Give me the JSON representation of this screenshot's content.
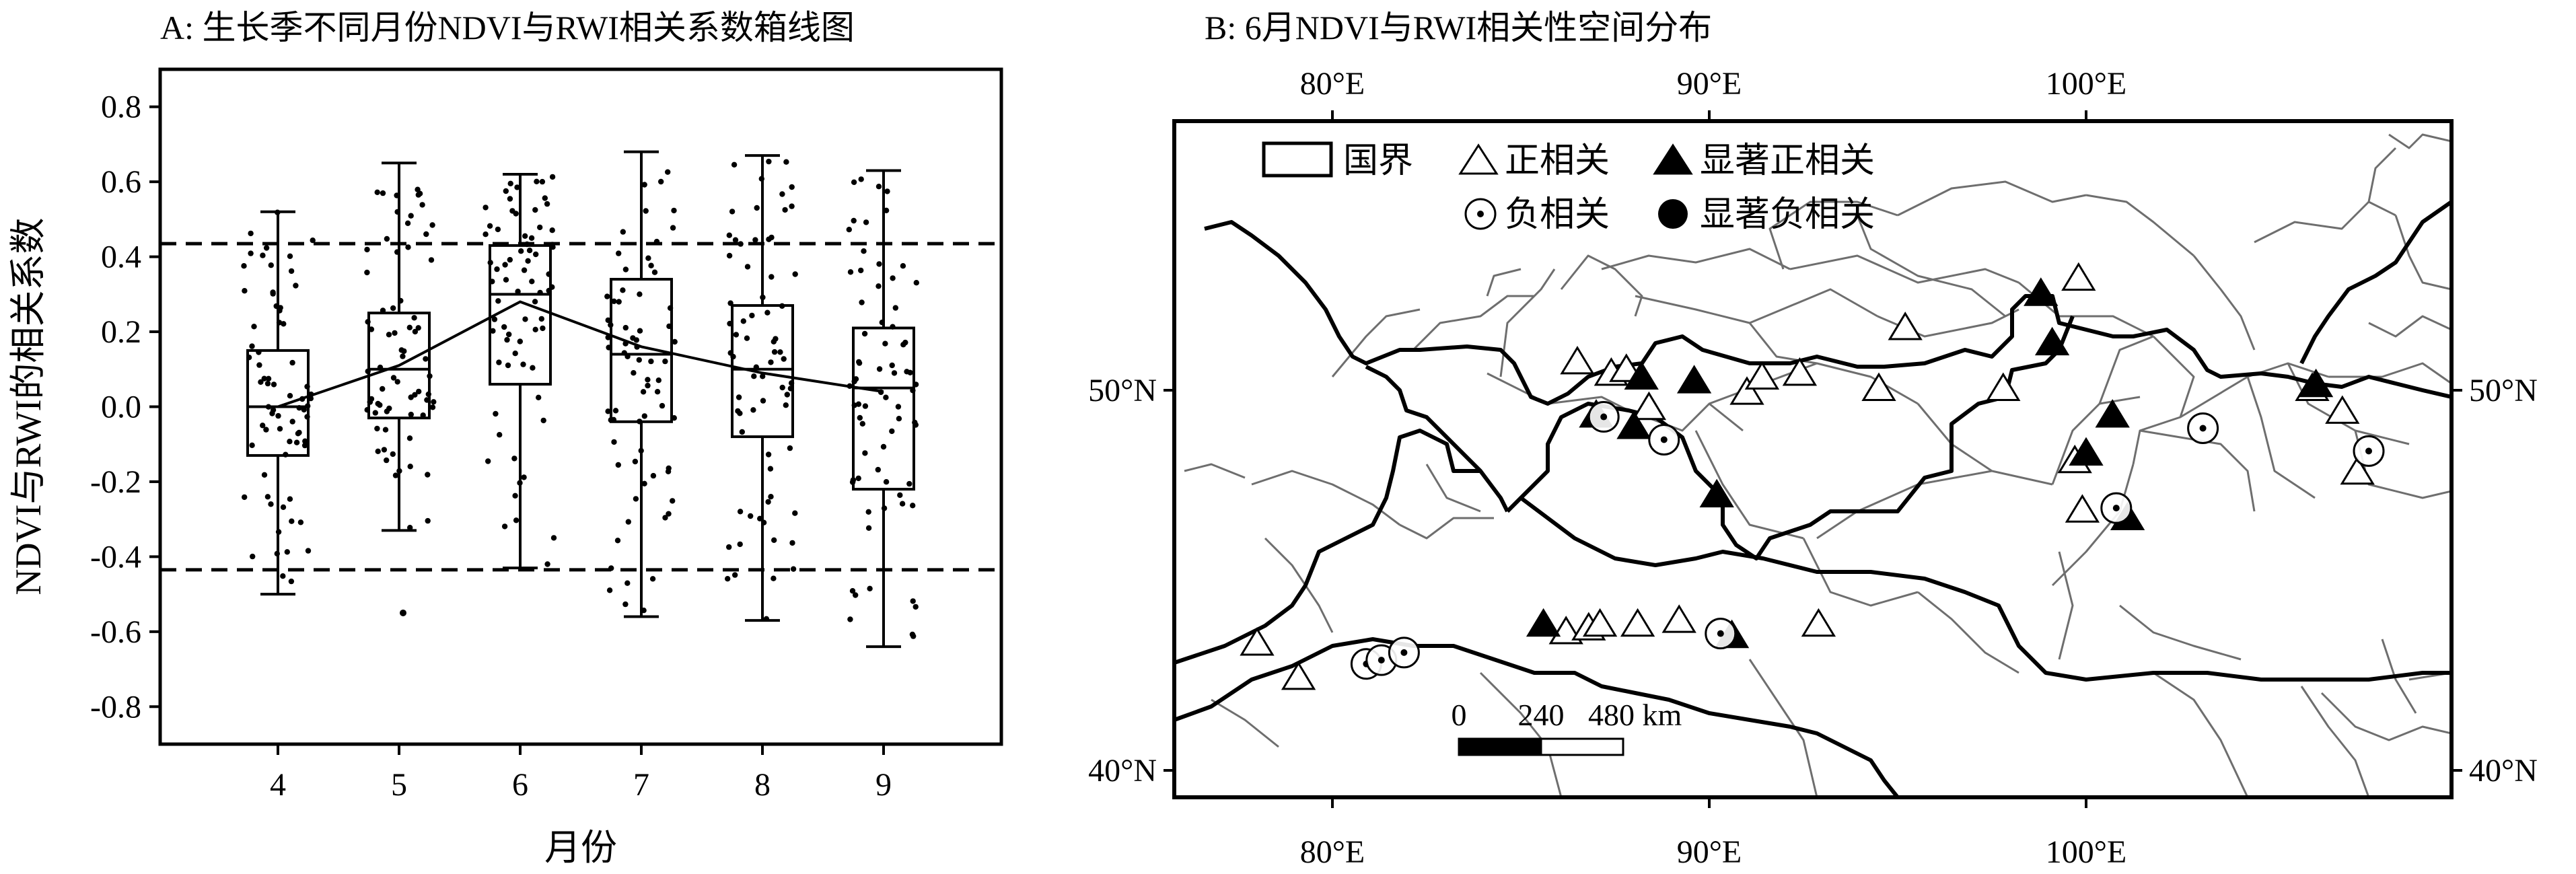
{
  "panel_a": {
    "title": "A: 生长季不同月份NDVI与RWI相关系数箱线图",
    "xlabel": "月份",
    "ylabel": "NDVI与RWI的相关系数"
  },
  "panel_b": {
    "title": "B: 6月NDVI与RWI相关性空间分布",
    "legend": {
      "border": "国界",
      "positive": "正相关",
      "sig_positive": "显著正相关",
      "negative": "负相关",
      "sig_negative": "显著负相关"
    },
    "scalebar": {
      "labels": [
        "0",
        "240",
        "480 km"
      ]
    },
    "lon_ticks": [
      "80°E",
      "90°E",
      "100°E"
    ],
    "lat_ticks": [
      "50°N",
      "40°N"
    ],
    "map_extent": {
      "lon": [
        76,
        110
      ],
      "lat": [
        39,
        57
      ]
    },
    "lon_tick_values": [
      80,
      90,
      100
    ],
    "lat_tick_values": [
      50,
      40
    ]
  },
  "chart_data": [
    {
      "type": "box",
      "title": "A: 生长季不同月份NDVI与RWI相关系数箱线图",
      "xlabel": "月份",
      "ylabel": "NDVI与RWI的相关系数",
      "categories": [
        "4",
        "5",
        "6",
        "7",
        "8",
        "9"
      ],
      "ylim": [
        -0.9,
        0.9
      ],
      "yticks": [
        -0.8,
        -0.6,
        -0.4,
        -0.2,
        0.0,
        0.2,
        0.4,
        0.6,
        0.8
      ],
      "ytick_labels": [
        "-0.8",
        "-0.6",
        "-0.4",
        "-0.2",
        "0.0",
        "0.2",
        "0.4",
        "0.6",
        "0.8"
      ],
      "significance_lines": [
        0.435,
        -0.435
      ],
      "boxes": [
        {
          "month": "4",
          "min": -0.5,
          "q1": -0.13,
          "median": 0.0,
          "q3": 0.15,
          "max": 0.52,
          "mean": 0.0
        },
        {
          "month": "5",
          "min": -0.33,
          "q1": -0.03,
          "median": 0.1,
          "q3": 0.25,
          "max": 0.65,
          "mean": 0.11
        },
        {
          "month": "6",
          "min": -0.43,
          "q1": 0.06,
          "median": 0.3,
          "q3": 0.43,
          "max": 0.62,
          "mean": 0.28
        },
        {
          "month": "7",
          "min": -0.56,
          "q1": -0.04,
          "median": 0.14,
          "q3": 0.34,
          "max": 0.68,
          "mean": 0.16
        },
        {
          "month": "8",
          "min": -0.57,
          "q1": -0.08,
          "median": 0.1,
          "q3": 0.27,
          "max": 0.67,
          "mean": 0.09
        },
        {
          "month": "9",
          "min": -0.64,
          "q1": -0.22,
          "median": 0.05,
          "q3": 0.21,
          "max": 0.63,
          "mean": 0.04
        }
      ],
      "outliers": [
        {
          "month": "5",
          "value": -0.55
        }
      ]
    },
    {
      "type": "map",
      "title": "B: 6月NDVI与RWI相关性空间分布",
      "points": [
        {
          "lon": 98.8,
          "lat": 52.5,
          "class": "sig_positive"
        },
        {
          "lon": 99.1,
          "lat": 51.2,
          "class": "sig_positive"
        },
        {
          "lon": 99.8,
          "lat": 52.9,
          "class": "positive"
        },
        {
          "lon": 95.2,
          "lat": 51.6,
          "class": "positive"
        },
        {
          "lon": 78.0,
          "lat": 43.3,
          "class": "positive"
        },
        {
          "lon": 86.5,
          "lat": 50.7,
          "class": "positive"
        },
        {
          "lon": 87.4,
          "lat": 50.4,
          "class": "positive"
        },
        {
          "lon": 87.8,
          "lat": 50.5,
          "class": "positive"
        },
        {
          "lon": 88.4,
          "lat": 49.5,
          "class": "positive"
        },
        {
          "lon": 91.0,
          "lat": 49.9,
          "class": "positive"
        },
        {
          "lon": 91.4,
          "lat": 50.3,
          "class": "positive"
        },
        {
          "lon": 92.4,
          "lat": 50.4,
          "class": "positive"
        },
        {
          "lon": 94.5,
          "lat": 50.0,
          "class": "positive"
        },
        {
          "lon": 97.8,
          "lat": 50.0,
          "class": "positive"
        },
        {
          "lon": 99.7,
          "lat": 48.1,
          "class": "positive"
        },
        {
          "lon": 99.9,
          "lat": 46.8,
          "class": "positive"
        },
        {
          "lon": 106.0,
          "lat": 50.0,
          "class": "positive"
        },
        {
          "lon": 106.8,
          "lat": 49.4,
          "class": "positive"
        },
        {
          "lon": 107.2,
          "lat": 47.8,
          "class": "positive"
        },
        {
          "lon": 86.2,
          "lat": 43.6,
          "class": "positive"
        },
        {
          "lon": 86.8,
          "lat": 43.7,
          "class": "positive"
        },
        {
          "lon": 87.1,
          "lat": 43.8,
          "class": "positive"
        },
        {
          "lon": 88.1,
          "lat": 43.8,
          "class": "positive"
        },
        {
          "lon": 89.2,
          "lat": 43.9,
          "class": "positive"
        },
        {
          "lon": 92.9,
          "lat": 43.8,
          "class": "positive"
        },
        {
          "lon": 79.1,
          "lat": 42.4,
          "class": "positive"
        },
        {
          "lon": 88.2,
          "lat": 50.3,
          "class": "sig_positive"
        },
        {
          "lon": 87.0,
          "lat": 49.3,
          "class": "sig_positive"
        },
        {
          "lon": 88.0,
          "lat": 49.0,
          "class": "sig_positive"
        },
        {
          "lon": 89.6,
          "lat": 50.2,
          "class": "sig_positive"
        },
        {
          "lon": 90.2,
          "lat": 47.2,
          "class": "sig_positive"
        },
        {
          "lon": 100.7,
          "lat": 49.3,
          "class": "sig_positive"
        },
        {
          "lon": 100.0,
          "lat": 48.3,
          "class": "sig_positive"
        },
        {
          "lon": 101.1,
          "lat": 46.6,
          "class": "sig_positive"
        },
        {
          "lon": 106.1,
          "lat": 50.1,
          "class": "sig_positive"
        },
        {
          "lon": 85.6,
          "lat": 43.8,
          "class": "sig_positive"
        },
        {
          "lon": 90.6,
          "lat": 43.5,
          "class": "sig_positive"
        },
        {
          "lon": 88.8,
          "lat": 48.7,
          "class": "negative"
        },
        {
          "lon": 87.2,
          "lat": 49.3,
          "class": "negative"
        },
        {
          "lon": 103.1,
          "lat": 49.0,
          "class": "negative"
        },
        {
          "lon": 100.8,
          "lat": 46.9,
          "class": "negative"
        },
        {
          "lon": 107.5,
          "lat": 48.4,
          "class": "negative"
        },
        {
          "lon": 80.9,
          "lat": 42.8,
          "class": "negative"
        },
        {
          "lon": 81.3,
          "lat": 42.9,
          "class": "negative"
        },
        {
          "lon": 81.9,
          "lat": 43.1,
          "class": "negative"
        },
        {
          "lon": 90.3,
          "lat": 43.6,
          "class": "negative"
        }
      ]
    }
  ],
  "colors": {
    "ink": "#000000",
    "border_gray": "#6e6e6e",
    "background": "#ffffff"
  }
}
